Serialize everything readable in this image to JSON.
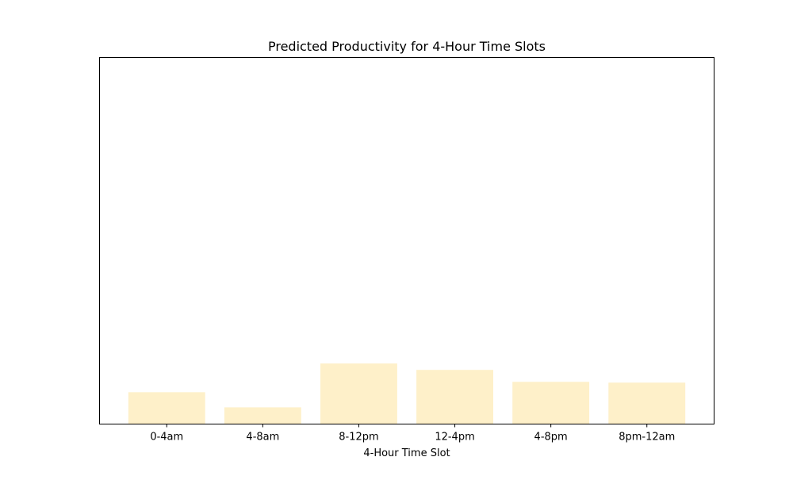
{
  "chart_data": {
    "type": "bar",
    "title": "Predicted Productivity for 4-Hour Time Slots",
    "xlabel": "4-Hour Time Slot",
    "ylabel": "",
    "categories": [
      "0-4am",
      "4-8am",
      "8-12pm",
      "12-4pm",
      "4-8pm",
      "8pm-12am"
    ],
    "values": [
      0.4,
      0.21,
      0.76,
      0.68,
      0.53,
      0.52
    ],
    "ylim": [
      0,
      4.6
    ],
    "y_ticks_shown": false,
    "grid": false,
    "bar_color": "#fef0c9"
  }
}
